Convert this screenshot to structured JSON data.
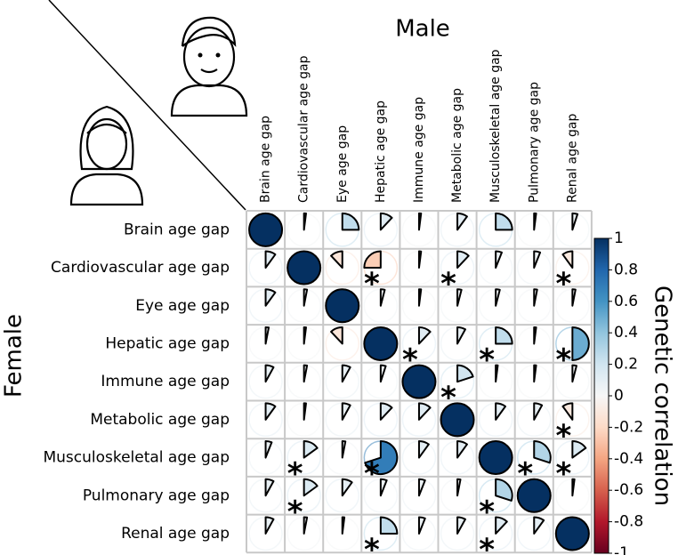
{
  "chart_data": {
    "type": "corrplot",
    "x_title": "Male",
    "y_title": "Female",
    "colorbar_title": "Genetic correlation",
    "categories": [
      "Brain age gap",
      "Cardiovascular age gap",
      "Eye age gap",
      "Hepatic age gap",
      "Immune age gap",
      "Metabolic age gap",
      "Musculoskeletal age gap",
      "Pulmonary age gap",
      "Renal age gap"
    ],
    "values": [
      [
        1,
        0.02,
        0.25,
        0.12,
        0.02,
        0.1,
        0.25,
        0.02,
        0.05
      ],
      [
        0.1,
        1,
        -0.12,
        -0.25,
        0.02,
        0.12,
        0.06,
        0.06,
        -0.1
      ],
      [
        0.1,
        0.03,
        1,
        0.04,
        0.02,
        0.04,
        0.04,
        0.03,
        0.03
      ],
      [
        0.03,
        0.02,
        -0.12,
        1,
        0.12,
        0.08,
        0.25,
        0.02,
        0.5
      ],
      [
        0.08,
        0.03,
        0.08,
        0.05,
        1,
        0.2,
        0.02,
        0.02,
        0.04
      ],
      [
        0.1,
        0.02,
        0.08,
        0.12,
        0.12,
        1,
        0.1,
        0.08,
        -0.1
      ],
      [
        0.06,
        0.15,
        0.03,
        0.7,
        0.1,
        0.1,
        1,
        0.3,
        0.15
      ],
      [
        0.08,
        0.15,
        0.1,
        0.06,
        0.06,
        0.03,
        0.3,
        1,
        0.02
      ],
      [
        0.08,
        0.03,
        0.02,
        0.25,
        0.06,
        0.08,
        0.12,
        0.1,
        1
      ]
    ],
    "significance": [
      [
        null,
        null,
        null,
        null,
        null,
        null,
        null,
        null,
        null
      ],
      [
        null,
        null,
        null,
        "*",
        null,
        "*",
        null,
        null,
        "*"
      ],
      [
        null,
        null,
        null,
        null,
        null,
        null,
        null,
        null,
        null
      ],
      [
        null,
        null,
        null,
        null,
        "*",
        null,
        "*",
        null,
        "*"
      ],
      [
        null,
        null,
        null,
        null,
        null,
        "*",
        null,
        null,
        null
      ],
      [
        null,
        null,
        null,
        null,
        null,
        null,
        null,
        null,
        "*"
      ],
      [
        null,
        "*",
        null,
        "*",
        null,
        null,
        null,
        "*",
        "*"
      ],
      [
        null,
        "*",
        null,
        null,
        null,
        null,
        "*",
        null,
        null
      ],
      [
        null,
        null,
        null,
        "*",
        null,
        null,
        "*",
        null,
        null
      ]
    ],
    "clim": [
      -1,
      1
    ],
    "cticks": [
      1,
      0.8,
      0.6,
      0.4,
      0.2,
      0,
      -0.2,
      -0.4,
      -0.6,
      -0.8,
      -1
    ],
    "colors": [
      "#67001f",
      "#b2182b",
      "#d6604d",
      "#f4a582",
      "#fddbc7",
      "#f7f7f7",
      "#d1e5f0",
      "#92c5de",
      "#4393c3",
      "#2166ac",
      "#053061"
    ]
  }
}
